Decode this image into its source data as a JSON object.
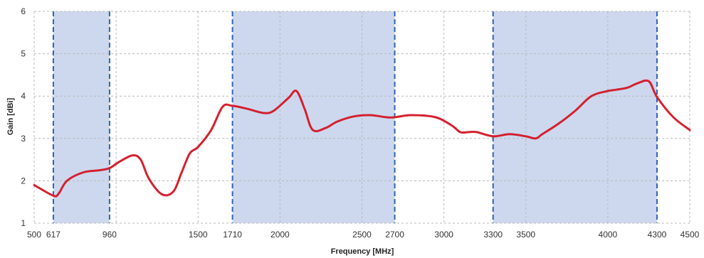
{
  "chart_data": {
    "type": "line",
    "title": "",
    "xlabel": "Frequency [MHz]",
    "ylabel": "Gain [dBi]",
    "xlim": [
      500,
      4500
    ],
    "ylim": [
      1,
      6
    ],
    "x_ticks": [
      500,
      617,
      960,
      1500,
      1710,
      2000,
      2500,
      2700,
      3000,
      3300,
      3500,
      4000,
      4300,
      4500
    ],
    "y_ticks": [
      1,
      2,
      3,
      4,
      5,
      6
    ],
    "x_gridlines": [
      1000,
      1500,
      2000,
      2500,
      3000,
      3500,
      4000
    ],
    "grid": true,
    "legend": "none",
    "bands": [
      {
        "start": 617,
        "end": 960
      },
      {
        "start": 1710,
        "end": 2700
      },
      {
        "start": 3300,
        "end": 4300
      }
    ],
    "series": [
      {
        "x": [
          500,
          617,
          650,
          700,
          800,
          900,
          960,
          1020,
          1100,
          1150,
          1200,
          1280,
          1350,
          1400,
          1450,
          1500,
          1580,
          1650,
          1710,
          1800,
          1900,
          1960,
          2050,
          2100,
          2150,
          2200,
          2280,
          2350,
          2450,
          2550,
          2650,
          2700,
          2800,
          2950,
          3050,
          3100,
          3150,
          3200,
          3300,
          3400,
          3500,
          3560,
          3600,
          3700,
          3800,
          3900,
          4000,
          4050,
          4120,
          4180,
          4250,
          4300,
          4400,
          4500
        ],
        "y": [
          1.9,
          1.65,
          1.7,
          2.0,
          2.2,
          2.25,
          2.3,
          2.45,
          2.6,
          2.5,
          2.05,
          1.68,
          1.75,
          2.2,
          2.65,
          2.8,
          3.2,
          3.75,
          3.77,
          3.7,
          3.6,
          3.65,
          3.95,
          4.12,
          3.7,
          3.2,
          3.25,
          3.4,
          3.52,
          3.55,
          3.5,
          3.5,
          3.55,
          3.5,
          3.3,
          3.15,
          3.15,
          3.15,
          3.05,
          3.1,
          3.05,
          3.0,
          3.1,
          3.35,
          3.65,
          4.0,
          4.12,
          4.15,
          4.2,
          4.3,
          4.35,
          3.98,
          3.5,
          3.2
        ],
        "color": "#d4202e"
      }
    ],
    "colors": {
      "band_fill": "#cdd8ee",
      "band_edge": "#2e63b8",
      "grid": "#b8b8b8",
      "line": "#d4202e"
    }
  }
}
